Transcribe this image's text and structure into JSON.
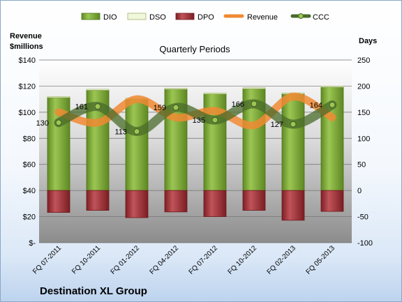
{
  "company": "Destination XL Group",
  "chart_data": {
    "type": "bar",
    "title": "Quarterly Periods",
    "ylabel_left": "Revenue\n$millions",
    "ylabel_right": "Days",
    "categories": [
      "FQ 07-2011",
      "FQ 10-2011",
      "FQ 01-2012",
      "FQ 04-2012",
      "FQ 07-2012",
      "FQ 10-2012",
      "FQ 02-2013",
      "FQ 05-2013"
    ],
    "left_ticks": [
      "$-",
      "$20",
      "$40",
      "$60",
      "$80",
      "$100",
      "$120",
      "$140"
    ],
    "right_ticks": [
      "-100",
      "-50",
      "0",
      "50",
      "100",
      "150",
      "200",
      "250"
    ],
    "left_ylim": [
      0,
      140
    ],
    "right_ylim": [
      -100,
      250
    ],
    "grid": true,
    "legend_position": "top",
    "series": [
      {
        "name": "DIO",
        "axis": "right",
        "kind": "bar",
        "color": "#7ba23a",
        "values": [
          178,
          192,
          175,
          194,
          185,
          195,
          185,
          198
        ]
      },
      {
        "name": "DSO",
        "axis": "right",
        "kind": "bar",
        "color": "#eef5d8",
        "values": [
          2,
          2,
          2,
          2,
          2,
          2,
          2,
          2
        ]
      },
      {
        "name": "DPO",
        "axis": "right",
        "kind": "bar",
        "color": "#9a2f34",
        "values": [
          -42,
          -38,
          -52,
          -41,
          -50,
          -38,
          -57,
          -40
        ]
      },
      {
        "name": "Revenue",
        "axis": "left",
        "kind": "line",
        "color": "#f08a32",
        "values": [
          100,
          92,
          110,
          96,
          101,
          90,
          112,
          96
        ]
      },
      {
        "name": "CCC",
        "axis": "right",
        "kind": "line",
        "color": "#4a6b2a",
        "values": [
          130,
          161,
          113,
          159,
          135,
          166,
          127,
          164
        ]
      }
    ],
    "ccc_labels": [
      "130",
      "161",
      "113",
      "159",
      "135",
      "166",
      "127",
      "164"
    ]
  }
}
